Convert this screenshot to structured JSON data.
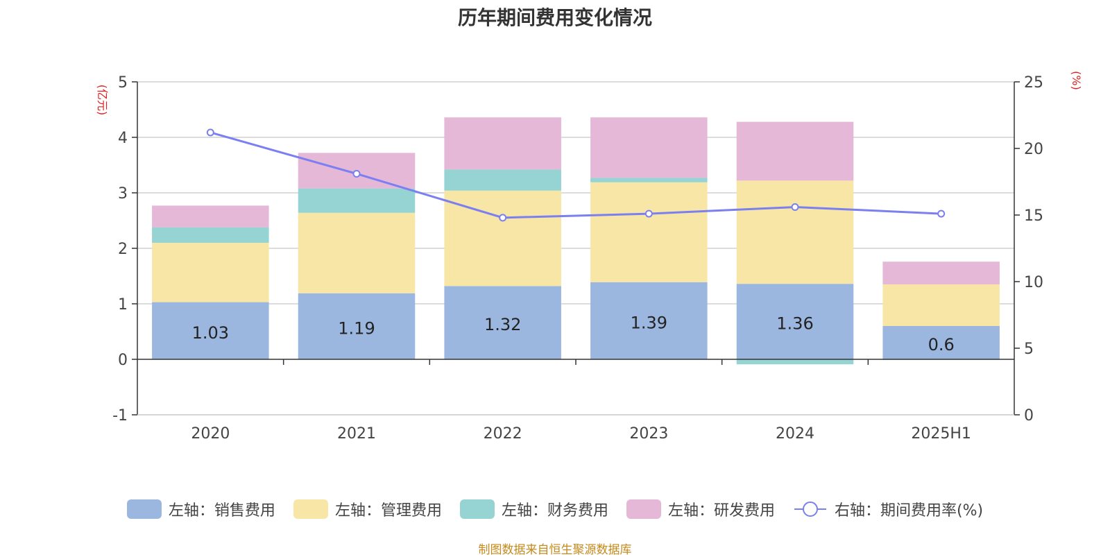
{
  "chart_data": {
    "type": "bar",
    "title": "历年期间费用变化情况",
    "categories": [
      "2020",
      "2021",
      "2022",
      "2023",
      "2024",
      "2025H1"
    ],
    "left_axis": {
      "unit": "(亿元)",
      "ylim": [
        -1,
        5
      ],
      "ticks": [
        "-1",
        "0",
        "1",
        "2",
        "3",
        "4",
        "5"
      ]
    },
    "right_axis": {
      "unit": "(%)",
      "ylim": [
        0,
        25
      ],
      "ticks": [
        "0",
        "5",
        "10",
        "15",
        "20",
        "25"
      ]
    },
    "series": [
      {
        "name": "左轴：销售费用",
        "type": "bar",
        "stack": "expense",
        "color": "#9bb7e0",
        "values": [
          1.03,
          1.19,
          1.32,
          1.39,
          1.36,
          0.6
        ],
        "labels": [
          "1.03",
          "1.19",
          "1.32",
          "1.39",
          "1.36",
          "0.6"
        ]
      },
      {
        "name": "左轴：管理费用",
        "type": "bar",
        "stack": "expense",
        "color": "#f7e6a6",
        "values": [
          1.07,
          1.45,
          1.72,
          1.8,
          1.86,
          0.75
        ]
      },
      {
        "name": "左轴：财务费用",
        "type": "bar",
        "stack": "expense",
        "color": "#96d4d4",
        "values": [
          0.28,
          0.44,
          0.38,
          0.08,
          -0.09,
          -0.01
        ]
      },
      {
        "name": "左轴：研发费用",
        "type": "bar",
        "stack": "expense",
        "color": "#e6b8d8",
        "values": [
          0.39,
          0.64,
          0.94,
          1.09,
          1.06,
          0.41
        ]
      },
      {
        "name": "右轴：期间费用率(%)",
        "type": "line",
        "axis": "right",
        "color": "#7b7ff0",
        "values": [
          21.2,
          18.1,
          14.8,
          15.1,
          15.6,
          15.1
        ]
      }
    ],
    "grid": true,
    "legend_position": "bottom"
  },
  "source_note": "制图数据来自恒生聚源数据库"
}
